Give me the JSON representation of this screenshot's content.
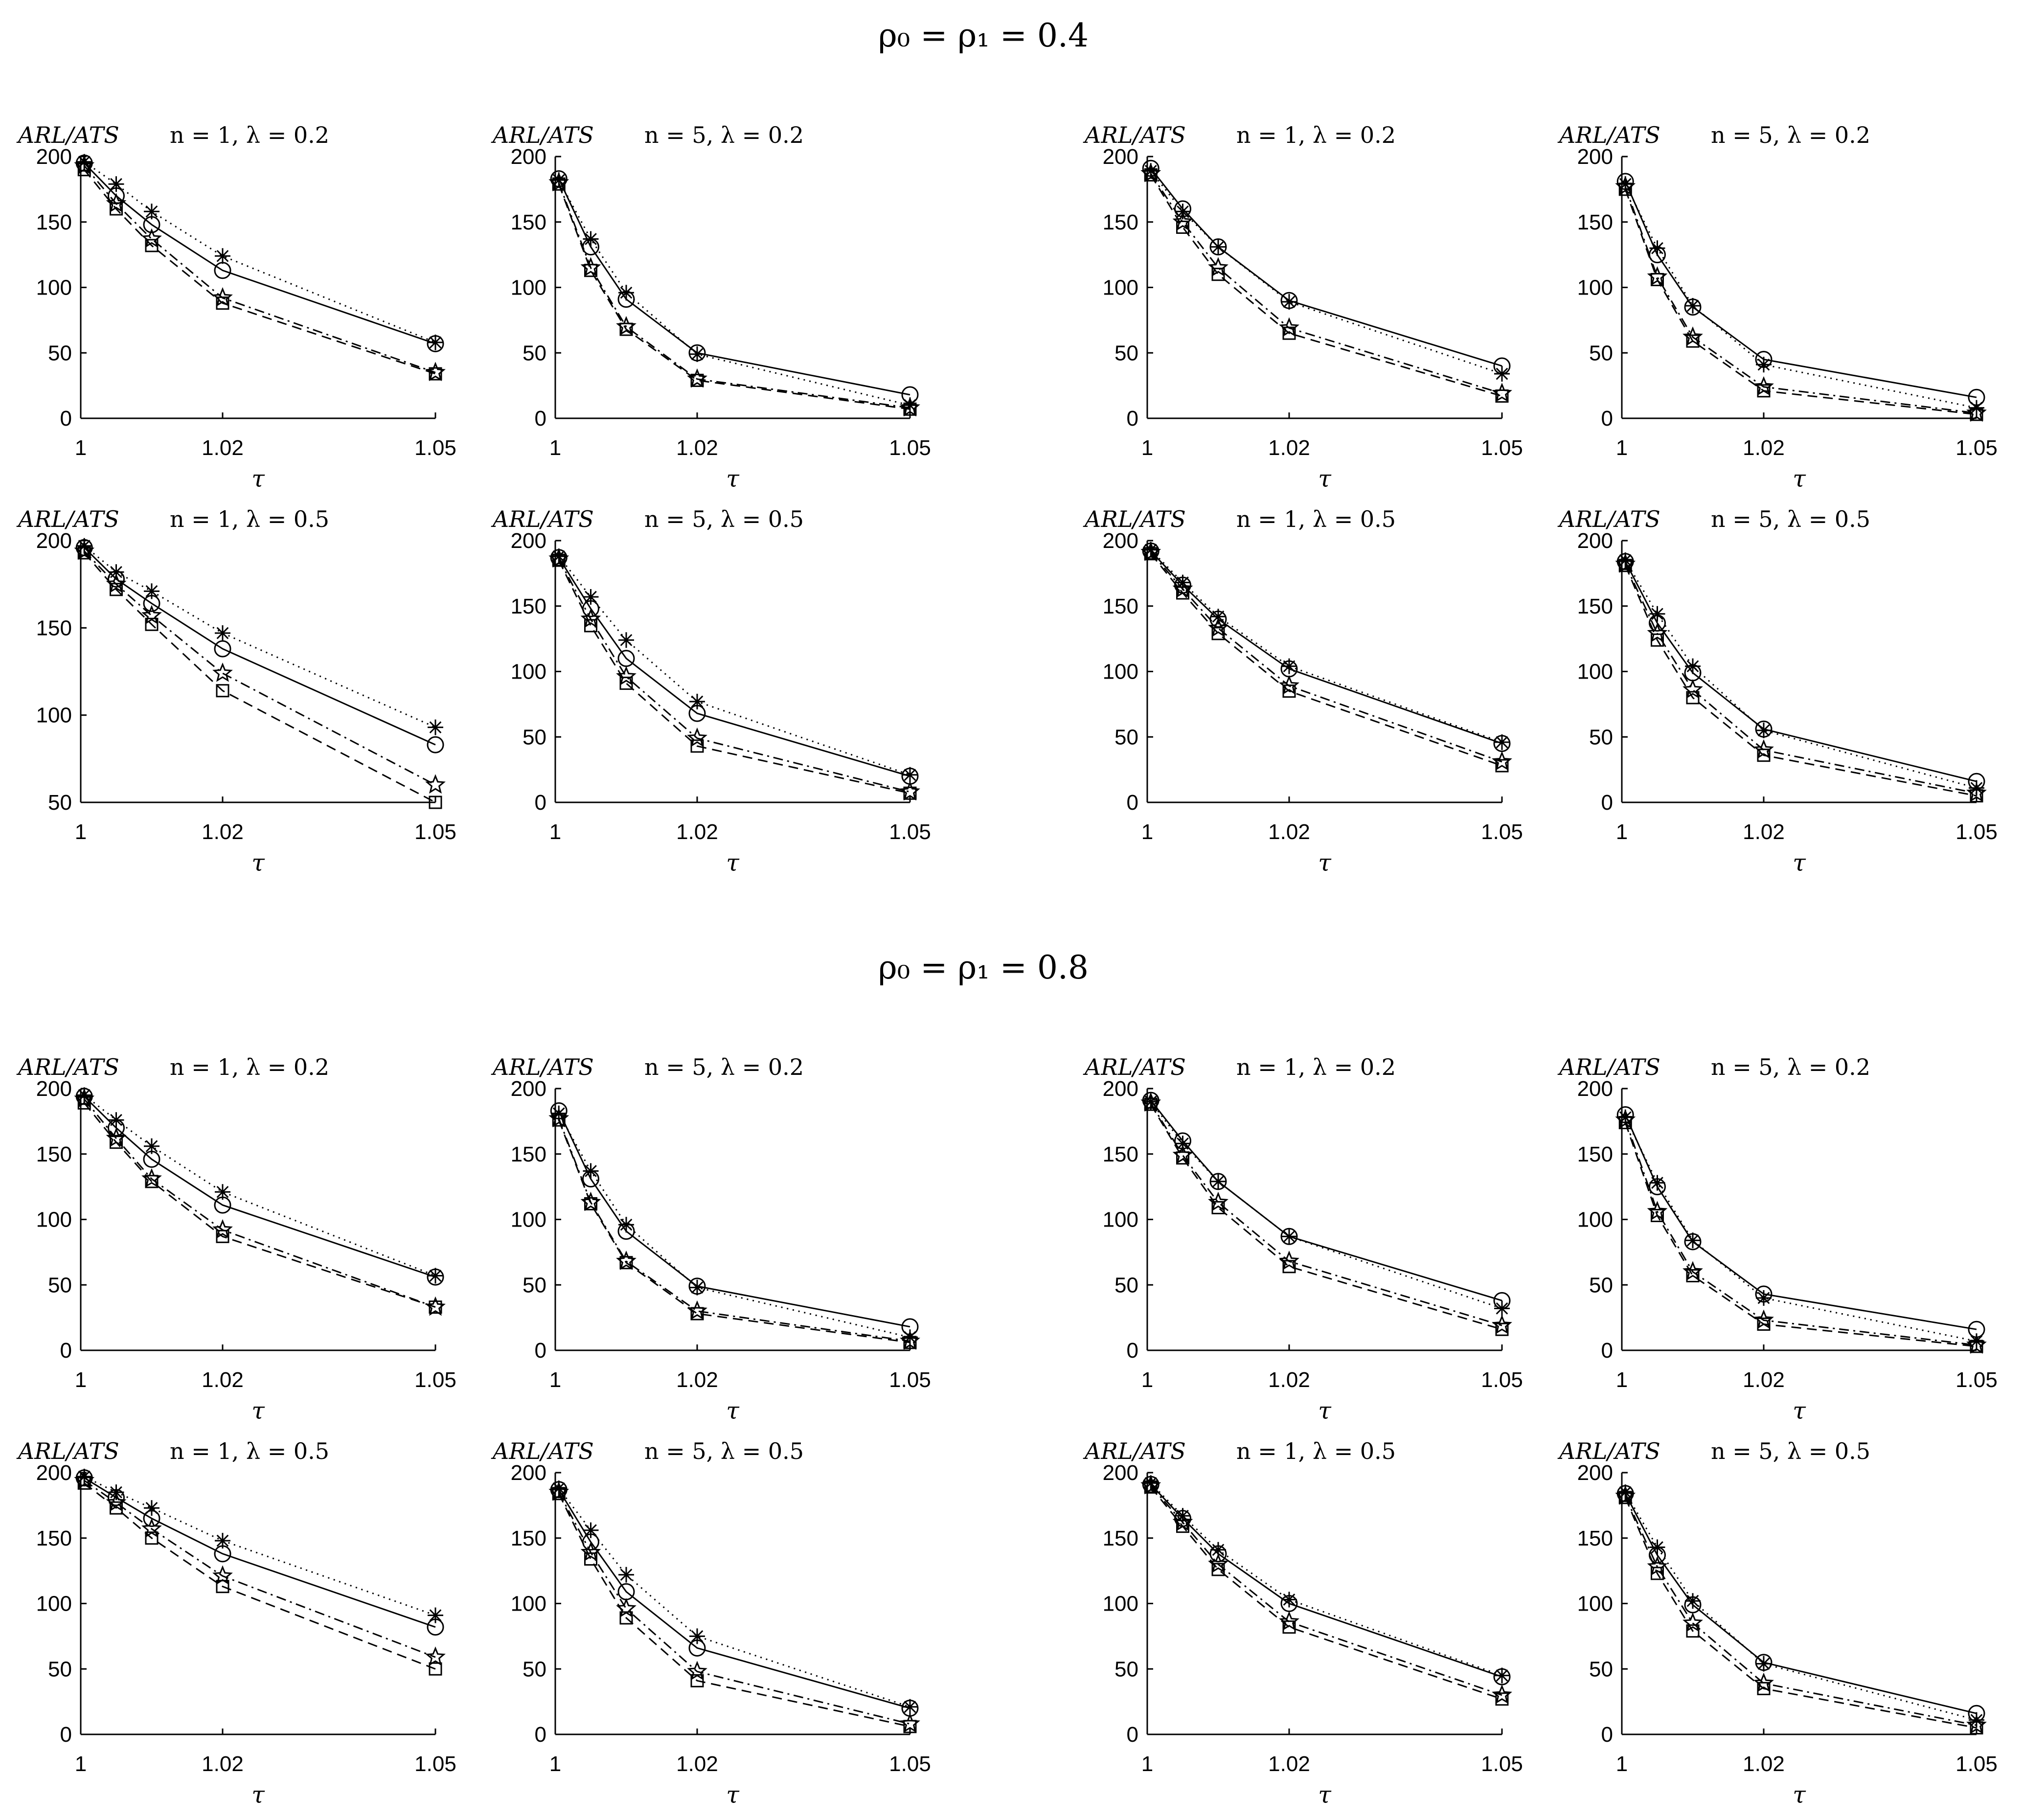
{
  "figure": {
    "sections": [
      {
        "title": "ρ₀ = ρ₁ = 0.4"
      },
      {
        "title": "ρ₀ = ρ₁ = 0.8"
      }
    ],
    "ylabel": "ARL/ATS",
    "xlabel": "τ",
    "x_tick_labels": [
      "1",
      "1.02",
      "1.05"
    ],
    "series_styles": [
      {
        "name": "circle series",
        "marker": "circle",
        "line": "solid"
      },
      {
        "name": "asterisk series",
        "marker": "asterisk",
        "line": "dotted"
      },
      {
        "name": "star series",
        "marker": "star",
        "line": "dash-dot"
      },
      {
        "name": "square series",
        "marker": "square",
        "line": "dashed"
      }
    ]
  },
  "chart_data": [
    {
      "type": "line",
      "section": 0,
      "title": "n = 1, λ = 0.2",
      "x": [
        1.0005,
        1.005,
        1.01,
        1.02,
        1.05
      ],
      "ylim": [
        0,
        200
      ],
      "yticks": [
        0,
        50,
        100,
        150,
        200
      ],
      "series": [
        {
          "name": "circle",
          "values": [
            195,
            170,
            148,
            113,
            57
          ]
        },
        {
          "name": "asterisk",
          "values": [
            196,
            179,
            158,
            124,
            58
          ]
        },
        {
          "name": "star",
          "values": [
            193,
            164,
            137,
            92,
            35
          ]
        },
        {
          "name": "square",
          "values": [
            190,
            160,
            132,
            88,
            34
          ]
        }
      ]
    },
    {
      "type": "line",
      "section": 0,
      "title": "n = 5, λ = 0.2",
      "x": [
        1.0005,
        1.005,
        1.01,
        1.02,
        1.05
      ],
      "ylim": [
        0,
        200
      ],
      "yticks": [
        0,
        50,
        100,
        150,
        200
      ],
      "series": [
        {
          "name": "circle",
          "values": [
            183,
            131,
            91,
            50,
            18
          ]
        },
        {
          "name": "asterisk",
          "values": [
            182,
            137,
            96,
            49,
            10
          ]
        },
        {
          "name": "star",
          "values": [
            180,
            115,
            70,
            30,
            8
          ]
        },
        {
          "name": "square",
          "values": [
            179,
            113,
            68,
            29,
            7
          ]
        }
      ]
    },
    {
      "type": "line",
      "section": 0,
      "title": "n = 1, λ = 0.2",
      "x": [
        1.0005,
        1.005,
        1.01,
        1.02,
        1.05
      ],
      "ylim": [
        0,
        200
      ],
      "yticks": [
        0,
        50,
        100,
        150,
        200
      ],
      "series": [
        {
          "name": "circle",
          "values": [
            191,
            160,
            131,
            90,
            40
          ]
        },
        {
          "name": "asterisk",
          "values": [
            189,
            158,
            131,
            89,
            34
          ]
        },
        {
          "name": "star",
          "values": [
            187,
            150,
            115,
            69,
            19
          ]
        },
        {
          "name": "square",
          "values": [
            186,
            146,
            110,
            65,
            17
          ]
        }
      ]
    },
    {
      "type": "line",
      "section": 0,
      "title": "n = 5, λ = 0.2",
      "x": [
        1.0005,
        1.005,
        1.01,
        1.02,
        1.05
      ],
      "ylim": [
        0,
        200
      ],
      "yticks": [
        0,
        50,
        100,
        150,
        200
      ],
      "series": [
        {
          "name": "circle",
          "values": [
            181,
            125,
            85,
            45,
            16
          ]
        },
        {
          "name": "asterisk",
          "values": [
            179,
            130,
            86,
            41,
            8
          ]
        },
        {
          "name": "star",
          "values": [
            177,
            108,
            62,
            24,
            4
          ]
        },
        {
          "name": "square",
          "values": [
            175,
            106,
            59,
            21,
            3
          ]
        }
      ]
    },
    {
      "type": "line",
      "section": 0,
      "title": "n = 1, λ = 0.5",
      "x": [
        1.0005,
        1.005,
        1.01,
        1.02,
        1.05
      ],
      "ylim": [
        50,
        200
      ],
      "yticks": [
        50,
        100,
        150,
        200
      ],
      "series": [
        {
          "name": "circle",
          "values": [
            196,
            178,
            164,
            138,
            83
          ]
        },
        {
          "name": "asterisk",
          "values": [
            197,
            182,
            171,
            147,
            93
          ]
        },
        {
          "name": "star",
          "values": [
            194,
            175,
            157,
            124,
            60
          ]
        },
        {
          "name": "square",
          "values": [
            193,
            172,
            152,
            114,
            50
          ]
        }
      ]
    },
    {
      "type": "line",
      "section": 0,
      "title": "n = 5, λ = 0.5",
      "x": [
        1.0005,
        1.005,
        1.01,
        1.02,
        1.05
      ],
      "ylim": [
        0,
        200
      ],
      "yticks": [
        0,
        50,
        100,
        150,
        200
      ],
      "series": [
        {
          "name": "circle",
          "values": [
            187,
            148,
            110,
            68,
            20
          ]
        },
        {
          "name": "asterisk",
          "values": [
            188,
            157,
            124,
            77,
            21
          ]
        },
        {
          "name": "star",
          "values": [
            186,
            140,
            96,
            49,
            8
          ]
        },
        {
          "name": "square",
          "values": [
            185,
            135,
            91,
            43,
            7
          ]
        }
      ]
    },
    {
      "type": "line",
      "section": 0,
      "title": "n = 1, λ = 0.5",
      "x": [
        1.0005,
        1.005,
        1.01,
        1.02,
        1.05
      ],
      "ylim": [
        0,
        200
      ],
      "yticks": [
        0,
        50,
        100,
        150,
        200
      ],
      "series": [
        {
          "name": "circle",
          "values": [
            192,
            166,
            140,
            102,
            45
          ]
        },
        {
          "name": "asterisk",
          "values": [
            193,
            168,
            142,
            104,
            46
          ]
        },
        {
          "name": "star",
          "values": [
            191,
            163,
            133,
            89,
            31
          ]
        },
        {
          "name": "square",
          "values": [
            190,
            160,
            129,
            85,
            28
          ]
        }
      ]
    },
    {
      "type": "line",
      "section": 0,
      "title": "n = 5, λ = 0.5",
      "x": [
        1.0005,
        1.005,
        1.01,
        1.02,
        1.05
      ],
      "ylim": [
        0,
        200
      ],
      "yticks": [
        0,
        50,
        100,
        150,
        200
      ],
      "series": [
        {
          "name": "circle",
          "values": [
            184,
            137,
            99,
            56,
            16
          ]
        },
        {
          "name": "asterisk",
          "values": [
            185,
            144,
            104,
            55,
            11
          ]
        },
        {
          "name": "star",
          "values": [
            182,
            129,
            86,
            40,
            7
          ]
        },
        {
          "name": "square",
          "values": [
            181,
            124,
            80,
            36,
            5
          ]
        }
      ]
    },
    {
      "type": "line",
      "section": 1,
      "title": "n = 1, λ = 0.2",
      "x": [
        1.0005,
        1.005,
        1.01,
        1.02,
        1.05
      ],
      "ylim": [
        0,
        200
      ],
      "yticks": [
        0,
        50,
        100,
        150,
        200
      ],
      "series": [
        {
          "name": "circle",
          "values": [
            194,
            170,
            146,
            111,
            56
          ]
        },
        {
          "name": "asterisk",
          "values": [
            195,
            176,
            156,
            121,
            57
          ]
        },
        {
          "name": "star",
          "values": [
            192,
            162,
            131,
            92,
            33
          ]
        },
        {
          "name": "square",
          "values": [
            189,
            159,
            129,
            87,
            33
          ]
        }
      ]
    },
    {
      "type": "line",
      "section": 1,
      "title": "n = 5, λ = 0.2",
      "x": [
        1.0005,
        1.005,
        1.01,
        1.02,
        1.05
      ],
      "ylim": [
        0,
        200
      ],
      "yticks": [
        0,
        50,
        100,
        150,
        200
      ],
      "series": [
        {
          "name": "circle",
          "values": [
            183,
            131,
            91,
            49,
            18
          ]
        },
        {
          "name": "asterisk",
          "values": [
            181,
            137,
            96,
            48,
            10
          ]
        },
        {
          "name": "star",
          "values": [
            177,
            113,
            68,
            30,
            7
          ]
        },
        {
          "name": "square",
          "values": [
            176,
            112,
            67,
            28,
            6
          ]
        }
      ]
    },
    {
      "type": "line",
      "section": 1,
      "title": "n = 1, λ = 0.2",
      "x": [
        1.0005,
        1.005,
        1.01,
        1.02,
        1.05
      ],
      "ylim": [
        0,
        200
      ],
      "yticks": [
        0,
        50,
        100,
        150,
        200
      ],
      "series": [
        {
          "name": "circle",
          "values": [
            191,
            160,
            129,
            87,
            38
          ]
        },
        {
          "name": "asterisk",
          "values": [
            190,
            158,
            129,
            87,
            32
          ]
        },
        {
          "name": "star",
          "values": [
            189,
            149,
            113,
            68,
            19
          ]
        },
        {
          "name": "square",
          "values": [
            188,
            147,
            109,
            64,
            16
          ]
        }
      ]
    },
    {
      "type": "line",
      "section": 1,
      "title": "n = 5, λ = 0.2",
      "x": [
        1.0005,
        1.005,
        1.01,
        1.02,
        1.05
      ],
      "ylim": [
        0,
        200
      ],
      "yticks": [
        0,
        50,
        100,
        150,
        200
      ],
      "series": [
        {
          "name": "circle",
          "values": [
            180,
            125,
            83,
            43,
            16
          ]
        },
        {
          "name": "asterisk",
          "values": [
            178,
            128,
            84,
            40,
            7
          ]
        },
        {
          "name": "star",
          "values": [
            176,
            106,
            60,
            23,
            4
          ]
        },
        {
          "name": "square",
          "values": [
            174,
            103,
            57,
            20,
            3
          ]
        }
      ]
    },
    {
      "type": "line",
      "section": 1,
      "title": "n = 1, λ = 0.5",
      "x": [
        1.0005,
        1.005,
        1.01,
        1.02,
        1.05
      ],
      "ylim": [
        0,
        200
      ],
      "yticks": [
        0,
        50,
        100,
        150,
        200
      ],
      "series": [
        {
          "name": "circle",
          "values": [
            196,
            181,
            165,
            138,
            82
          ]
        },
        {
          "name": "asterisk",
          "values": [
            197,
            185,
            173,
            148,
            91
          ]
        },
        {
          "name": "star",
          "values": [
            194,
            177,
            157,
            121,
            59
          ]
        },
        {
          "name": "square",
          "values": [
            192,
            173,
            150,
            113,
            50
          ]
        }
      ]
    },
    {
      "type": "line",
      "section": 1,
      "title": "n = 5, λ = 0.5",
      "x": [
        1.0005,
        1.005,
        1.01,
        1.02,
        1.05
      ],
      "ylim": [
        0,
        200
      ],
      "yticks": [
        0,
        50,
        100,
        150,
        200
      ],
      "series": [
        {
          "name": "circle",
          "values": [
            187,
            147,
            109,
            66,
            20
          ]
        },
        {
          "name": "asterisk",
          "values": [
            188,
            156,
            122,
            75,
            21
          ]
        },
        {
          "name": "star",
          "values": [
            185,
            139,
            96,
            48,
            8
          ]
        },
        {
          "name": "square",
          "values": [
            184,
            134,
            89,
            41,
            6
          ]
        }
      ]
    },
    {
      "type": "line",
      "section": 1,
      "title": "n = 1, λ = 0.5",
      "x": [
        1.0005,
        1.005,
        1.01,
        1.02,
        1.05
      ],
      "ylim": [
        0,
        200
      ],
      "yticks": [
        0,
        50,
        100,
        150,
        200
      ],
      "series": [
        {
          "name": "circle",
          "values": [
            191,
            165,
            138,
            100,
            44
          ]
        },
        {
          "name": "asterisk",
          "values": [
            192,
            167,
            141,
            103,
            45
          ]
        },
        {
          "name": "star",
          "values": [
            190,
            162,
            130,
            86,
            30
          ]
        },
        {
          "name": "square",
          "values": [
            189,
            159,
            126,
            82,
            27
          ]
        }
      ]
    },
    {
      "type": "line",
      "section": 1,
      "title": "n = 5, λ = 0.5",
      "x": [
        1.0005,
        1.005,
        1.01,
        1.02,
        1.05
      ],
      "ylim": [
        0,
        200
      ],
      "yticks": [
        0,
        50,
        100,
        150,
        200
      ],
      "series": [
        {
          "name": "circle",
          "values": [
            184,
            137,
            99,
            55,
            16
          ]
        },
        {
          "name": "asterisk",
          "values": [
            185,
            143,
            102,
            54,
            11
          ]
        },
        {
          "name": "star",
          "values": [
            182,
            128,
            85,
            39,
            7
          ]
        },
        {
          "name": "square",
          "values": [
            181,
            123,
            79,
            35,
            5
          ]
        }
      ]
    }
  ]
}
